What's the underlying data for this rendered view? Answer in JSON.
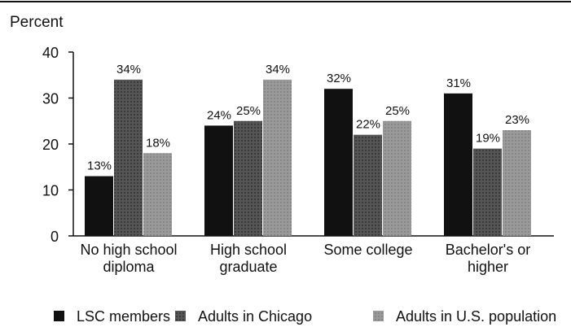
{
  "chart_data": {
    "type": "bar",
    "ylabel": "Percent",
    "ylim": [
      0,
      40
    ],
    "yticks": [
      "0",
      "10",
      "20",
      "30",
      "40"
    ],
    "categories": [
      [
        "No high school",
        "diploma"
      ],
      [
        "High school",
        "graduate"
      ],
      [
        "Some college"
      ],
      [
        "Bachelor's or",
        "higher"
      ]
    ],
    "series": [
      {
        "name": "LSC members",
        "color": "#111111",
        "values": [
          13,
          24,
          32,
          31
        ],
        "labels": [
          "13%",
          "24%",
          "32%",
          "31%"
        ]
      },
      {
        "name": "Adults in Chicago",
        "color": "#555555",
        "values": [
          34,
          25,
          22,
          19
        ],
        "labels": [
          "34%",
          "25%",
          "22%",
          "19%"
        ]
      },
      {
        "name": "Adults in U.S. population",
        "color": "#9a9a9a",
        "values": [
          18,
          34,
          25,
          23
        ],
        "labels": [
          "18%",
          "34%",
          "25%",
          "23%"
        ]
      }
    ],
    "legend_position": "bottom",
    "grid": false
  }
}
